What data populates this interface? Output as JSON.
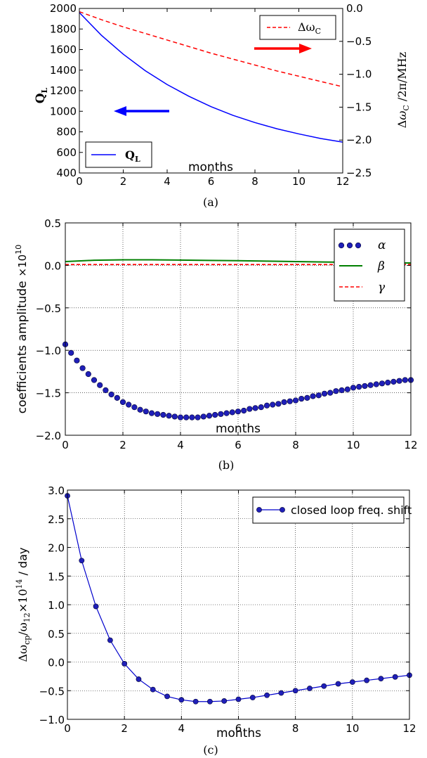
{
  "chart_data": [
    {
      "type": "line",
      "caption": "(a)",
      "xlabel": "months",
      "ylabel_left": "Q_L",
      "ylabel_right": "Δω_C / 2π / MHz",
      "xlim": [
        0,
        12
      ],
      "ylim_left": [
        400,
        2000
      ],
      "ylim_right": [
        -2.5,
        0.0
      ],
      "xticks": [
        0,
        2,
        4,
        6,
        8,
        10,
        12
      ],
      "yticks_left": [
        400,
        600,
        800,
        1000,
        1200,
        1400,
        1600,
        1800,
        2000
      ],
      "yticks_right": [
        -2.5,
        -2.0,
        -1.5,
        -1.0,
        -0.5,
        0.0
      ],
      "grid": false,
      "x": [
        0,
        1,
        2,
        3,
        4,
        5,
        6,
        7,
        8,
        9,
        10,
        11,
        12
      ],
      "series": [
        {
          "name": "Q_L",
          "axis": "left",
          "color": "#0000ff",
          "style": "solid",
          "legend_main": "Q",
          "legend_sub": "L",
          "values": [
            1960,
            1740,
            1555,
            1395,
            1260,
            1145,
            1045,
            960,
            890,
            830,
            780,
            735,
            700
          ]
        },
        {
          "name": "Δω_C",
          "axis": "right",
          "color": "#ff0000",
          "style": "dashed",
          "legend_main": "Δω",
          "legend_sub": "C",
          "values": [
            -0.05,
            -0.17,
            -0.28,
            -0.38,
            -0.48,
            -0.58,
            -0.68,
            -0.77,
            -0.86,
            -0.95,
            -1.03,
            -1.11,
            -1.19
          ]
        }
      ],
      "legend": [
        "lower-left",
        "upper-right"
      ],
      "arrows": [
        {
          "color": "#0000ff",
          "direction": "left",
          "points_to": "left axis"
        },
        {
          "color": "#ff0000",
          "direction": "right",
          "points_to": "right axis"
        }
      ]
    },
    {
      "type": "line",
      "caption": "(b)",
      "xlabel": "months",
      "ylabel": "coefficients amplitude",
      "ylabel_scale": "×10",
      "ylabel_scale_exp": "10",
      "xlim": [
        0,
        12
      ],
      "ylim": [
        -2.0,
        0.5
      ],
      "xticks": [
        0,
        2,
        4,
        6,
        8,
        10,
        12
      ],
      "yticks": [
        -2.0,
        -1.5,
        -1.0,
        -0.5,
        0.0,
        0.5
      ],
      "grid": true,
      "legend_position": "upper-right",
      "series": [
        {
          "name": "α",
          "color": "#0000cc",
          "style": "markers",
          "x_start": 0,
          "x_step": 0.2,
          "values": [
            -0.93,
            -1.03,
            -1.12,
            -1.21,
            -1.28,
            -1.35,
            -1.41,
            -1.47,
            -1.52,
            -1.56,
            -1.61,
            -1.64,
            -1.67,
            -1.7,
            -1.72,
            -1.74,
            -1.75,
            -1.76,
            -1.77,
            -1.78,
            -1.79,
            -1.79,
            -1.79,
            -1.79,
            -1.78,
            -1.77,
            -1.76,
            -1.75,
            -1.74,
            -1.73,
            -1.72,
            -1.71,
            -1.69,
            -1.68,
            -1.67,
            -1.65,
            -1.64,
            -1.63,
            -1.61,
            -1.6,
            -1.59,
            -1.57,
            -1.56,
            -1.54,
            -1.53,
            -1.51,
            -1.5,
            -1.48,
            -1.47,
            -1.46,
            -1.44,
            -1.43,
            -1.42,
            -1.41,
            -1.4,
            -1.39,
            -1.38,
            -1.37,
            -1.36,
            -1.35,
            -1.35
          ]
        },
        {
          "name": "β",
          "color": "#008000",
          "style": "solid",
          "x": [
            0,
            1,
            2,
            3,
            4,
            5,
            6,
            7,
            8,
            9,
            10,
            11,
            12
          ],
          "values": [
            0.045,
            0.06,
            0.065,
            0.065,
            0.062,
            0.058,
            0.055,
            0.05,
            0.045,
            0.04,
            0.035,
            0.03,
            0.028
          ]
        },
        {
          "name": "γ",
          "color": "#ff0000",
          "style": "dashed",
          "x": [
            0,
            12
          ],
          "values": [
            0.01,
            0.01
          ]
        }
      ]
    },
    {
      "type": "line",
      "caption": "(c)",
      "xlabel": "months",
      "ylabel_main": "Δω",
      "ylabel_sub1": "cp",
      "ylabel_mid": "/ω",
      "ylabel_sub2": "12",
      "ylabel_mult": "×10",
      "ylabel_exp": "14",
      "ylabel_tail": " / day",
      "xlim": [
        0,
        12
      ],
      "ylim": [
        -1.0,
        3.0
      ],
      "xticks": [
        0,
        2,
        4,
        6,
        8,
        10,
        12
      ],
      "yticks": [
        -1.0,
        -0.5,
        0.0,
        0.5,
        1.0,
        1.5,
        2.0,
        2.5,
        3.0
      ],
      "grid": true,
      "legend_position": "upper-right",
      "series": [
        {
          "name": "closed loop freq. shift",
          "color": "#0000cc",
          "style": "line+markers",
          "x": [
            0,
            0.5,
            1,
            1.5,
            2,
            2.5,
            3,
            3.5,
            4,
            4.5,
            5,
            5.5,
            6,
            6.5,
            7,
            7.5,
            8,
            8.5,
            9,
            9.5,
            10,
            10.5,
            11,
            11.5,
            12
          ],
          "values": [
            2.9,
            1.77,
            0.97,
            0.38,
            -0.03,
            -0.3,
            -0.48,
            -0.6,
            -0.66,
            -0.69,
            -0.69,
            -0.68,
            -0.65,
            -0.62,
            -0.58,
            -0.54,
            -0.5,
            -0.46,
            -0.42,
            -0.38,
            -0.35,
            -0.32,
            -0.29,
            -0.26,
            -0.23
          ]
        }
      ]
    }
  ]
}
